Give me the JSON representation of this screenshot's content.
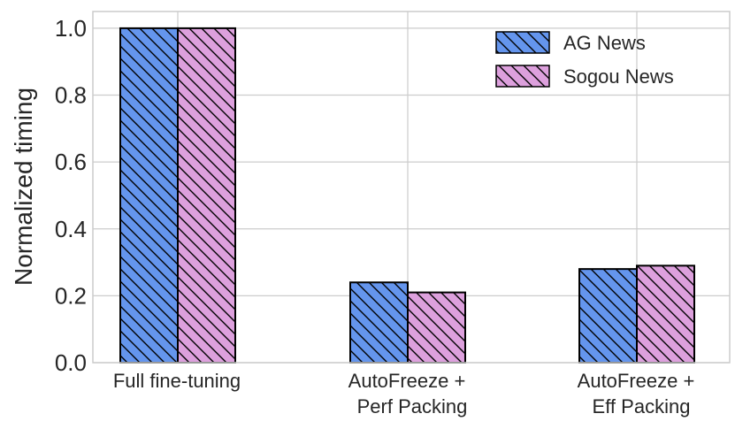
{
  "chart_data": {
    "type": "bar",
    "title": "",
    "xlabel": "",
    "ylabel": "Normalized timing",
    "ylim": [
      0,
      1.05
    ],
    "yticks": [
      "0.0",
      "0.2",
      "0.4",
      "0.6",
      "0.8",
      "1.0"
    ],
    "categories": [
      [
        "Full fine-tuning"
      ],
      [
        "AutoFreeze +",
        "Perf Packing"
      ],
      [
        "AutoFreeze +",
        "Eff Packing"
      ]
    ],
    "series": [
      {
        "name": "AG News",
        "values": [
          1.0,
          0.24,
          0.28
        ],
        "color": "#6495ed"
      },
      {
        "name": "Sogou News",
        "values": [
          1.0,
          0.21,
          0.29
        ],
        "color": "#dda0dd"
      }
    ],
    "grid": true,
    "legend": "top-right"
  }
}
